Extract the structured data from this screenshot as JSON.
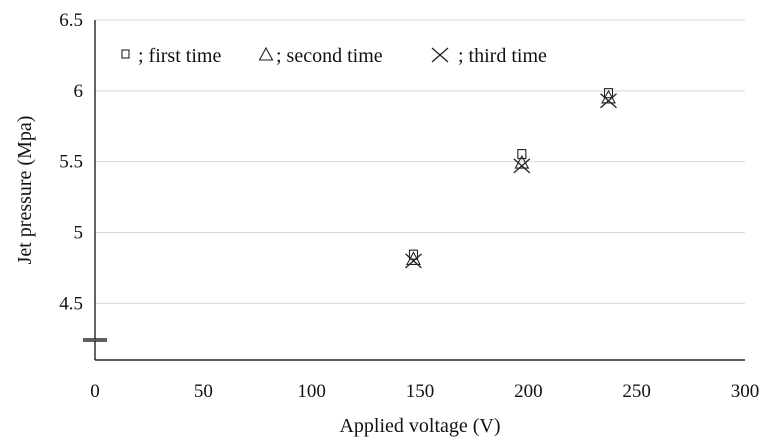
{
  "chart_data": {
    "type": "scatter",
    "title": "",
    "xlabel": "Applied voltage (V)",
    "ylabel": "Jet pressure (Mpa)",
    "xlim": [
      0,
      300
    ],
    "ylim": [
      4.1,
      6.5
    ],
    "x_ticks": [
      "0",
      "50",
      "100",
      "150",
      "200",
      "250",
      "300"
    ],
    "y_ticks": [
      "4.5",
      "5",
      "5.5",
      "6",
      "6.5"
    ],
    "y_axis_break": true,
    "grid": "horizontal",
    "legend_position": "top-left",
    "series": [
      {
        "name": "first time",
        "legend_label": "; first time",
        "marker": "square",
        "x": [
          147,
          197,
          237
        ],
        "y": [
          4.84,
          5.55,
          5.98
        ]
      },
      {
        "name": "second time",
        "legend_label": "; second time",
        "marker": "triangle",
        "x": [
          147,
          197,
          237
        ],
        "y": [
          4.81,
          5.49,
          5.95
        ]
      },
      {
        "name": "third time",
        "legend_label": "; third time",
        "marker": "x",
        "x": [
          147,
          197,
          237
        ],
        "y": [
          4.8,
          5.47,
          5.93
        ]
      }
    ]
  }
}
